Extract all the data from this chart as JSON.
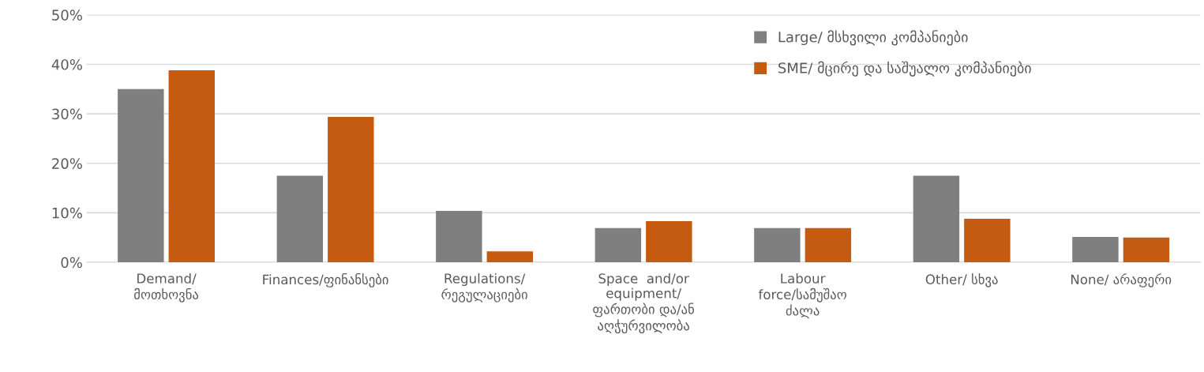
{
  "chart_data": {
    "type": "bar",
    "categories": [
      "Demand/\nმოთხოვნა",
      "Finances/ფინანსები",
      "Regulations/\nრეგულაციები",
      "Space  and/or\nequipment/\nფართობი და/ან\nაღჭურვილობა",
      "Labour\nforce/სამუშაო\nძალა",
      "Other/ სხვა",
      "None/ არაფერი"
    ],
    "series": [
      {
        "name": "Large/ მსხვილი კომპანიები",
        "color": "#7f7f7f",
        "values": [
          35,
          17.5,
          10.4,
          6.9,
          6.9,
          17.5,
          5.1
        ]
      },
      {
        "name": "SME/ მცირე და საშუალო კომპანიები",
        "color": "#c55a11",
        "values": [
          38.8,
          29.4,
          2.2,
          8.3,
          6.9,
          8.8,
          5.0
        ]
      }
    ],
    "ylim": [
      0,
      50
    ],
    "yticks": [
      {
        "value": 0,
        "label": "0%"
      },
      {
        "value": 10,
        "label": "10%"
      },
      {
        "value": 20,
        "label": "20%"
      },
      {
        "value": 30,
        "label": "30%"
      },
      {
        "value": 40,
        "label": "40%"
      },
      {
        "value": 50,
        "label": "50%"
      }
    ],
    "grid": "y",
    "legend": "top right"
  }
}
